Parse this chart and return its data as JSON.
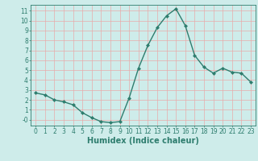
{
  "x": [
    0,
    1,
    2,
    3,
    4,
    5,
    6,
    7,
    8,
    9,
    10,
    11,
    12,
    13,
    14,
    15,
    16,
    17,
    18,
    19,
    20,
    21,
    22,
    23
  ],
  "y": [
    2.7,
    2.5,
    2.0,
    1.8,
    1.5,
    0.7,
    0.2,
    -0.2,
    -0.3,
    -0.2,
    2.2,
    5.2,
    7.5,
    9.3,
    10.5,
    11.2,
    9.5,
    6.5,
    5.3,
    4.7,
    5.2,
    4.8,
    4.7,
    3.8
  ],
  "line_color": "#2e7d6e",
  "marker": "D",
  "marker_size": 2,
  "bg_color": "#ceecea",
  "grid_color": "#e8aaaa",
  "xlabel": "Humidex (Indice chaleur)",
  "xlim": [
    -0.5,
    23.5
  ],
  "ylim": [
    -0.6,
    11.6
  ],
  "xticks": [
    0,
    1,
    2,
    3,
    4,
    5,
    6,
    7,
    8,
    9,
    10,
    11,
    12,
    13,
    14,
    15,
    16,
    17,
    18,
    19,
    20,
    21,
    22,
    23
  ],
  "yticks": [
    0,
    1,
    2,
    3,
    4,
    5,
    6,
    7,
    8,
    9,
    10,
    11
  ],
  "ytick_labels": [
    "-0",
    "1",
    "2",
    "3",
    "4",
    "5",
    "6",
    "7",
    "8",
    "9",
    "10",
    "11"
  ],
  "tick_fontsize": 5.5,
  "xlabel_fontsize": 7,
  "linewidth": 1.0
}
